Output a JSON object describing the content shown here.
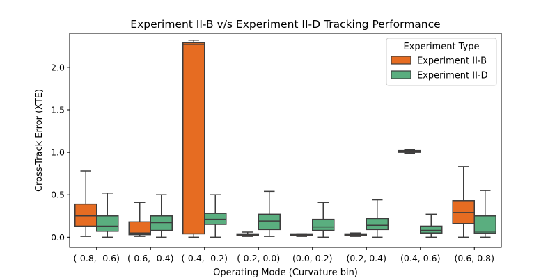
{
  "chart_data": {
    "type": "box",
    "title": "Experiment II-B v/s Experiment II-D Tracking Performance",
    "xlabel": "Operating Mode (Curvature bin)",
    "ylabel": "Cross-Track Error (XTE)",
    "ylim": [
      -0.12,
      2.4
    ],
    "yticks": [
      0.0,
      0.5,
      1.0,
      1.5,
      2.0
    ],
    "ytick_labels": [
      "0.0",
      "0.5",
      "1.0",
      "1.5",
      "2.0"
    ],
    "categories": [
      "(-0.8, -0.6)",
      "(-0.6, -0.4)",
      "(-0.4, -0.2)",
      "(-0.2, 0.0)",
      "(0.0, 0.2)",
      "(0.2, 0.4)",
      "(0.4, 0.6)",
      "(0.6, 0.8)"
    ],
    "legend": {
      "title": "Experiment Type",
      "position": "upper right"
    },
    "series": [
      {
        "name": "Experiment II-B",
        "color": "#e66c22",
        "boxes": [
          {
            "whislo": 0.01,
            "q1": 0.13,
            "med": 0.25,
            "q3": 0.39,
            "whishi": 0.78
          },
          {
            "whislo": 0.01,
            "q1": 0.03,
            "med": 0.05,
            "q3": 0.18,
            "whishi": 0.41
          },
          {
            "whislo": 0.0,
            "q1": 0.04,
            "med": 2.27,
            "q3": 2.29,
            "whishi": 2.32
          },
          {
            "whislo": 0.01,
            "q1": 0.02,
            "med": 0.03,
            "q3": 0.04,
            "whishi": 0.06
          },
          {
            "whislo": 0.01,
            "q1": 0.02,
            "med": 0.03,
            "q3": 0.04,
            "whishi": 0.04
          },
          {
            "whislo": 0.01,
            "q1": 0.02,
            "med": 0.03,
            "q3": 0.04,
            "whishi": 0.05
          },
          {
            "whislo": 0.99,
            "q1": 1.0,
            "med": 1.01,
            "q3": 1.02,
            "whishi": 1.03
          },
          {
            "whislo": 0.0,
            "q1": 0.16,
            "med": 0.29,
            "q3": 0.43,
            "whishi": 0.83
          }
        ]
      },
      {
        "name": "Experiment II-D",
        "color": "#5aae7f",
        "boxes": [
          {
            "whislo": 0.0,
            "q1": 0.07,
            "med": 0.13,
            "q3": 0.25,
            "whishi": 0.52
          },
          {
            "whislo": 0.0,
            "q1": 0.08,
            "med": 0.17,
            "q3": 0.25,
            "whishi": 0.5
          },
          {
            "whislo": 0.0,
            "q1": 0.15,
            "med": 0.21,
            "q3": 0.28,
            "whishi": 0.5
          },
          {
            "whislo": 0.01,
            "q1": 0.09,
            "med": 0.19,
            "q3": 0.27,
            "whishi": 0.54
          },
          {
            "whislo": 0.0,
            "q1": 0.08,
            "med": 0.12,
            "q3": 0.21,
            "whishi": 0.41
          },
          {
            "whislo": 0.0,
            "q1": 0.09,
            "med": 0.14,
            "q3": 0.22,
            "whishi": 0.44
          },
          {
            "whislo": 0.0,
            "q1": 0.05,
            "med": 0.08,
            "q3": 0.13,
            "whishi": 0.27
          },
          {
            "whislo": 0.0,
            "q1": 0.05,
            "med": 0.07,
            "q3": 0.25,
            "whishi": 0.55
          }
        ]
      }
    ]
  }
}
